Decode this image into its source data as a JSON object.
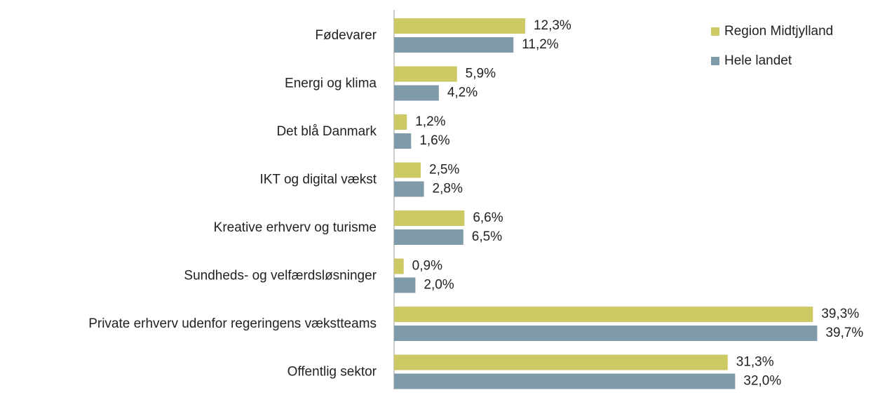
{
  "chart_data": {
    "type": "bar",
    "orientation": "horizontal",
    "categories": [
      "Fødevarer",
      "Energi og klima",
      "Det blå Danmark",
      "IKT og digital vækst",
      "Kreative erhverv og turisme",
      "Sundheds- og velfærdsløsninger",
      "Private erhverv udenfor regeringens vækstteams",
      "Offentlig sektor"
    ],
    "series": [
      {
        "name": "Region Midtjylland",
        "color": "#cdc964",
        "values": [
          12.3,
          5.9,
          1.2,
          2.5,
          6.6,
          0.9,
          39.3,
          31.3
        ],
        "value_labels": [
          "12,3%",
          "5,9%",
          "1,2%",
          "2,5%",
          "6,6%",
          "0,9%",
          "39,3%",
          "31,3%"
        ]
      },
      {
        "name": "Hele landet",
        "color": "#7f9aa9",
        "values": [
          11.2,
          4.2,
          1.6,
          2.8,
          6.5,
          2.0,
          39.7,
          32.0
        ],
        "value_labels": [
          "11,2%",
          "4,2%",
          "1,6%",
          "2,8%",
          "6,5%",
          "2,0%",
          "39,7%",
          "32,0%"
        ]
      }
    ],
    "xlim": [
      0,
      40
    ],
    "legend": "top-right"
  }
}
